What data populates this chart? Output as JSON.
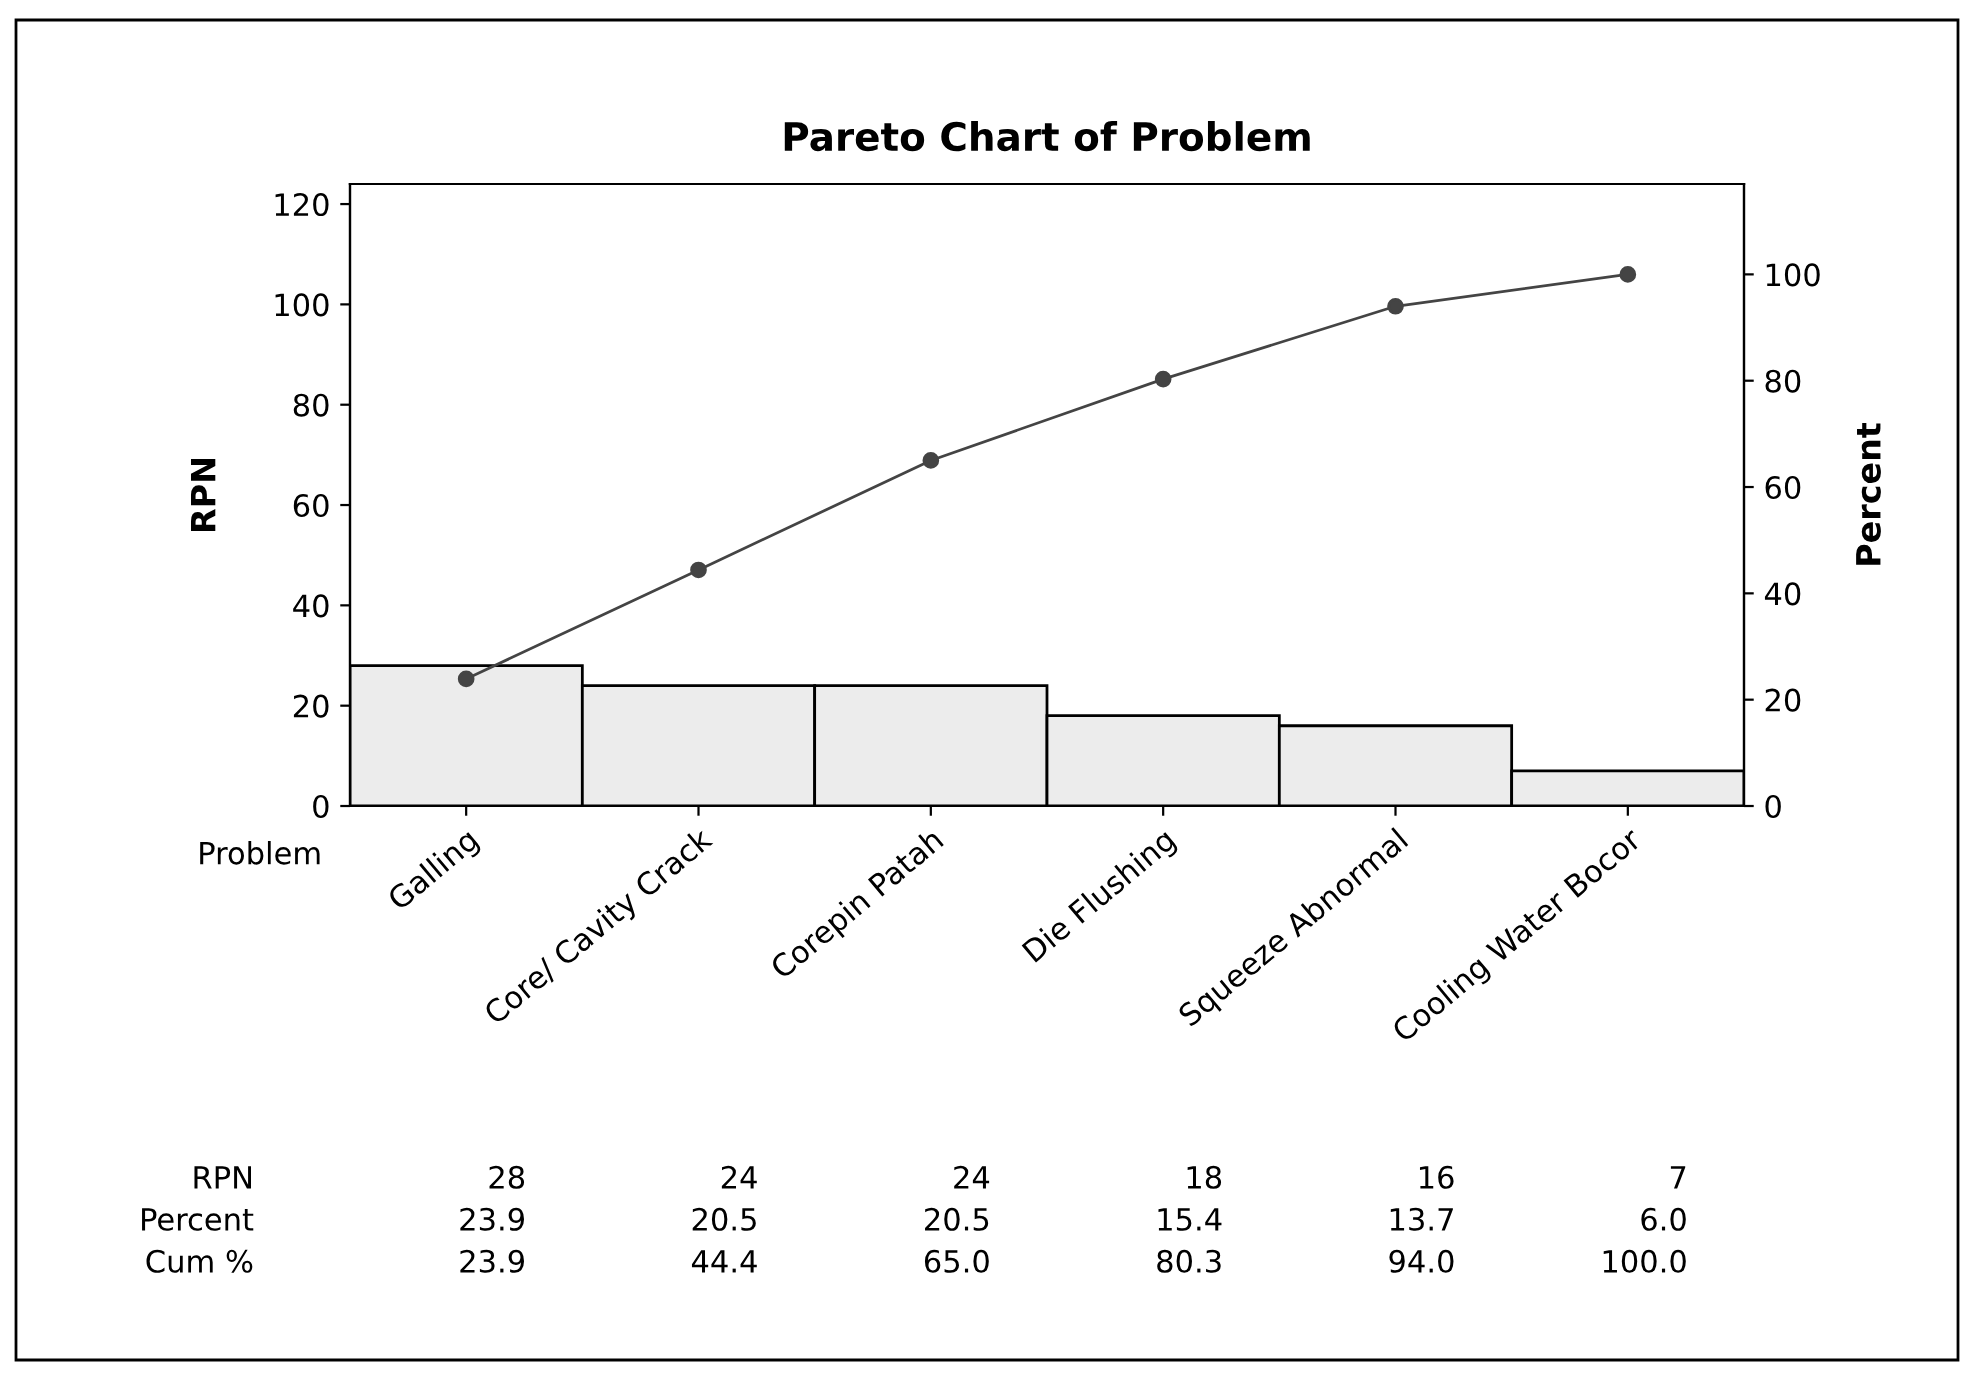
{
  "chart_data": {
    "type": "bar",
    "title": "Pareto Chart of Problem",
    "xlabel": "Problem",
    "ylabel": "RPN",
    "y2label": "Percent",
    "categories": [
      "Galling",
      "Core/ Cavity Crack",
      "Corepin Patah",
      "Die Flushing",
      "Squeeze Abnormal",
      "Cooling Water Bocor"
    ],
    "ylim": [
      0,
      124
    ],
    "yticks": [
      0,
      20,
      40,
      60,
      80,
      100,
      120
    ],
    "y2lim": [
      0,
      117
    ],
    "y2ticks": [
      0,
      20,
      40,
      60,
      80,
      100
    ],
    "grid": false,
    "marker": "circle",
    "series": [
      {
        "color": "#ececec",
        "values": [
          28,
          24,
          24,
          18,
          16,
          7
        ]
      },
      {
        "type": "line",
        "axis": "y2",
        "color": "#444444",
        "values": [
          23.9,
          44.4,
          65.0,
          80.3,
          94.0,
          100.0
        ]
      }
    ],
    "annotations": [
      "RPN",
      "28",
      "24",
      "24",
      "18",
      "16",
      "7",
      "Percent",
      "23.9",
      "20.5",
      "20.5",
      "15.4",
      "13.7",
      "6.0",
      "Cum %",
      "23.9",
      "44.4",
      "65.0",
      "80.3",
      "94.0",
      "100.0"
    ]
  }
}
